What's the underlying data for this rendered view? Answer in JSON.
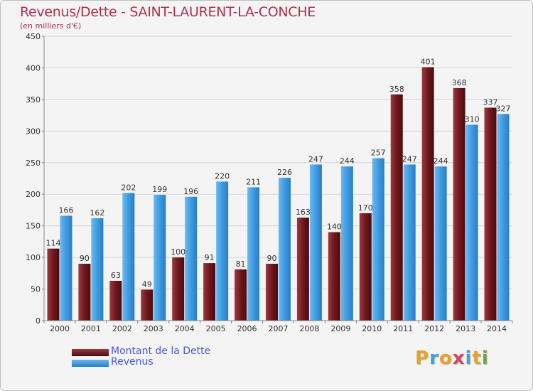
{
  "title": "Revenus/Dette - SAINT-LAURENT-LA-CONCHE",
  "subtitle": "(en milliers d'€)",
  "logo": {
    "text": "Proxiti",
    "colors": [
      "#e8a22a",
      "#3fa3d8",
      "#e8a22a",
      "#d64561",
      "#3fa3d8",
      "#e8a22a",
      "#6aa83c"
    ]
  },
  "colors": {
    "debt": "#7a1f24",
    "revenue": "#3e9be0",
    "grid": "#d6d6d6",
    "axis_text": "#333333",
    "value_text": "#333333"
  },
  "chart_data": {
    "type": "bar",
    "categories": [
      "2000",
      "2001",
      "2002",
      "2003",
      "2004",
      "2005",
      "2006",
      "2007",
      "2008",
      "2009",
      "2010",
      "2011",
      "2012",
      "2013",
      "2014"
    ],
    "series": [
      {
        "name": "Montant de la Dette",
        "values": [
          114,
          90,
          63,
          49,
          100,
          91,
          81,
          90,
          163,
          140,
          170,
          358,
          401,
          368,
          337
        ]
      },
      {
        "name": "Revenus",
        "values": [
          166,
          162,
          202,
          199,
          196,
          220,
          211,
          226,
          247,
          244,
          257,
          247,
          244,
          310,
          327
        ]
      }
    ],
    "ylim": [
      0,
      450
    ],
    "yticks": [
      0,
      50,
      100,
      150,
      200,
      250,
      300,
      350,
      400,
      450
    ],
    "grid": true,
    "legend_position": "bottom-left"
  }
}
